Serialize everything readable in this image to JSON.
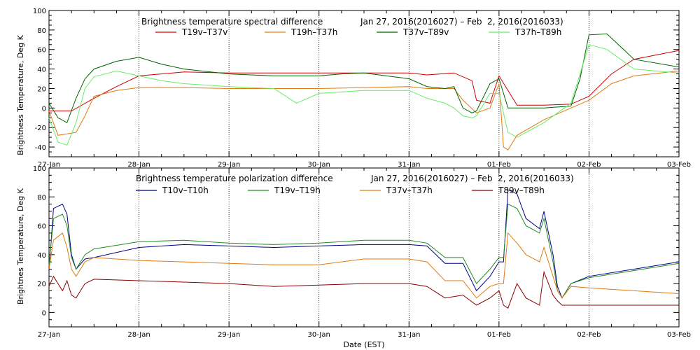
{
  "xlabel": "Date (EST)",
  "x_ticks": [
    "27-Jan",
    "28-Jan",
    "29-Jan",
    "30-Jan",
    "31-Jan",
    "01-Feb",
    "02-Feb",
    "03-Feb"
  ],
  "chart_data": [
    {
      "type": "line",
      "title": "Brightness temperature spectral difference",
      "date_range": "Jan 27, 2016(2016027) – Feb  2, 2016(2016033)",
      "ylabel": "Brightness Temperature, Deg K",
      "xlim": [
        0,
        7
      ],
      "ylim": [
        -50,
        100
      ],
      "y_ticks": [
        -40,
        -20,
        0,
        20,
        40,
        60,
        80,
        100
      ],
      "grid": "vertical dotted at day boundaries",
      "legend": "top, inside plot",
      "series": [
        {
          "name": "T19v–T37v",
          "color": "#cc0000",
          "x": [
            0,
            0.25,
            0.5,
            0.75,
            1,
            1.5,
            2,
            2.5,
            3,
            3.5,
            4,
            4.2,
            4.5,
            4.7,
            4.75,
            4.9,
            5,
            5.2,
            5.5,
            5.8,
            6,
            6.25,
            6.5,
            7
          ],
          "y": [
            -3,
            -3,
            10,
            22,
            33,
            37,
            36,
            36,
            36,
            36,
            36,
            34,
            36,
            28,
            8,
            5,
            33,
            3,
            3,
            4,
            12,
            35,
            50,
            59
          ]
        },
        {
          "name": "T19h–T37h",
          "color": "#e07a10",
          "x": [
            0,
            0.1,
            0.3,
            0.4,
            0.5,
            0.75,
            1,
            1.5,
            2,
            2.5,
            3,
            3.5,
            4,
            4.2,
            4.5,
            4.6,
            4.75,
            4.9,
            5,
            5.05,
            5.1,
            5.2,
            5.5,
            5.8,
            6,
            6.25,
            6.5,
            7
          ],
          "y": [
            -3,
            -28,
            -25,
            -8,
            12,
            18,
            21,
            21,
            20,
            20,
            20,
            21,
            22,
            20,
            20,
            8,
            -5,
            0,
            25,
            -40,
            -43,
            -28,
            -12,
            0,
            8,
            25,
            33,
            38
          ]
        },
        {
          "name": "T37v–T89v",
          "color": "#006400",
          "x": [
            0,
            0.1,
            0.2,
            0.3,
            0.4,
            0.5,
            0.75,
            1,
            1.25,
            1.5,
            2,
            2.5,
            3,
            3.25,
            3.5,
            4,
            4.2,
            4.4,
            4.5,
            4.6,
            4.7,
            4.75,
            4.9,
            5,
            5.1,
            5.5,
            5.8,
            5.9,
            6,
            6.2,
            6.5,
            7
          ],
          "y": [
            5,
            -10,
            -15,
            10,
            30,
            40,
            48,
            52,
            45,
            40,
            35,
            33,
            33,
            35,
            36,
            30,
            22,
            20,
            22,
            0,
            -5,
            -3,
            25,
            30,
            0,
            0,
            2,
            30,
            75,
            76,
            50,
            42
          ]
        },
        {
          "name": "T37h–T89h",
          "color": "#66ee66",
          "x": [
            0,
            0.1,
            0.2,
            0.3,
            0.4,
            0.5,
            0.75,
            1,
            1.25,
            1.5,
            2,
            2.5,
            2.75,
            3,
            3.5,
            4,
            4.2,
            4.4,
            4.5,
            4.6,
            4.7,
            4.75,
            4.9,
            5,
            5.1,
            5.2,
            5.5,
            5.8,
            5.9,
            6,
            6.2,
            6.5,
            7
          ],
          "y": [
            -10,
            -35,
            -38,
            -15,
            20,
            32,
            38,
            33,
            28,
            25,
            22,
            20,
            5,
            15,
            18,
            18,
            10,
            5,
            0,
            -8,
            -10,
            -8,
            15,
            15,
            -25,
            -30,
            -15,
            5,
            35,
            65,
            60,
            40,
            36
          ]
        }
      ]
    },
    {
      "type": "line",
      "title": "Brightness temperature polarization difference",
      "date_range": "Jan 27, 2016(2016027) – Feb  2, 2016(2016033)",
      "ylabel": "Brightnes Temperature, Deg K",
      "xlim": [
        0,
        7
      ],
      "ylim": [
        -10,
        100
      ],
      "y_ticks": [
        0,
        20,
        40,
        60,
        80,
        100
      ],
      "grid": "vertical dotted at day boundaries",
      "legend": "top, inside plot",
      "series": [
        {
          "name": "T10v–T10h",
          "color": "#00008b",
          "x": [
            0,
            0.05,
            0.15,
            0.2,
            0.25,
            0.3,
            0.4,
            0.5,
            1,
            1.5,
            2,
            2.5,
            3,
            3.5,
            4,
            4.2,
            4.4,
            4.6,
            4.75,
            4.9,
            5,
            5.05,
            5.1,
            5.2,
            5.3,
            5.45,
            5.5,
            5.6,
            5.65,
            5.7,
            5.8,
            6,
            6.5,
            7
          ],
          "y": [
            28,
            72,
            75,
            68,
            40,
            30,
            37,
            38,
            45,
            47,
            46,
            45,
            46,
            47,
            47,
            46,
            34,
            34,
            15,
            25,
            35,
            35,
            85,
            82,
            65,
            58,
            70,
            40,
            18,
            10,
            20,
            25,
            30,
            35
          ]
        },
        {
          "name": "T19v–T19h",
          "color": "#228b22",
          "x": [
            0,
            0.05,
            0.15,
            0.2,
            0.25,
            0.3,
            0.4,
            0.5,
            1,
            1.5,
            2,
            2.5,
            3,
            3.5,
            4,
            4.2,
            4.4,
            4.6,
            4.75,
            4.9,
            5,
            5.05,
            5.1,
            5.2,
            5.3,
            5.45,
            5.5,
            5.6,
            5.65,
            5.7,
            5.8,
            6,
            6.5,
            7
          ],
          "y": [
            32,
            65,
            68,
            60,
            38,
            30,
            40,
            44,
            49,
            50,
            48,
            47,
            48,
            50,
            50,
            48,
            38,
            38,
            20,
            30,
            38,
            38,
            75,
            72,
            60,
            55,
            65,
            35,
            15,
            10,
            20,
            24,
            29,
            34
          ]
        },
        {
          "name": "T37v–T37h",
          "color": "#e07a10",
          "x": [
            0,
            0.05,
            0.15,
            0.2,
            0.25,
            0.3,
            0.4,
            0.5,
            1,
            1.5,
            2,
            2.5,
            3,
            3.5,
            4,
            4.2,
            4.4,
            4.6,
            4.75,
            4.9,
            5,
            5.05,
            5.1,
            5.2,
            5.3,
            5.45,
            5.5,
            5.6,
            5.65,
            5.7,
            5.8,
            6,
            6.5,
            7
          ],
          "y": [
            30,
            50,
            55,
            45,
            30,
            25,
            35,
            38,
            36,
            35,
            34,
            33,
            33,
            37,
            37,
            35,
            22,
            22,
            10,
            18,
            20,
            20,
            55,
            48,
            40,
            35,
            45,
            25,
            15,
            10,
            18,
            17,
            15,
            13
          ]
        },
        {
          "name": "T89v–T89h",
          "color": "#8b0000",
          "x": [
            0,
            0.05,
            0.15,
            0.2,
            0.25,
            0.3,
            0.4,
            0.5,
            1,
            1.5,
            2,
            2.5,
            3,
            3.5,
            4,
            4.2,
            4.4,
            4.6,
            4.75,
            4.9,
            5,
            5.05,
            5.1,
            5.2,
            5.3,
            5.45,
            5.5,
            5.6,
            5.65,
            5.7,
            5.8,
            6,
            6.5,
            7
          ],
          "y": [
            18,
            25,
            15,
            22,
            12,
            10,
            20,
            23,
            22,
            21,
            20,
            18,
            19,
            20,
            20,
            18,
            10,
            12,
            5,
            10,
            15,
            5,
            3,
            20,
            10,
            5,
            28,
            12,
            8,
            5,
            5,
            5,
            5,
            5
          ]
        }
      ]
    }
  ]
}
